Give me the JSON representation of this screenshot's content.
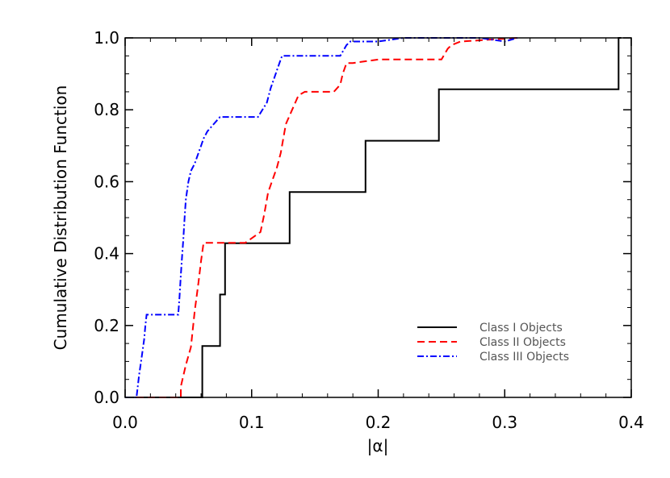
{
  "chart_data": {
    "type": "line",
    "xlabel": "|α|",
    "ylabel": "Cumulative Distribution Function",
    "xlim": [
      0.0,
      0.4
    ],
    "ylim": [
      0.0,
      1.0
    ],
    "xticks": [
      "0.0",
      "0.1",
      "0.2",
      "0.3",
      "0.4"
    ],
    "yticks": [
      "0.0",
      "0.2",
      "0.4",
      "0.6",
      "0.8",
      "1.0"
    ],
    "legend_position": "lower-right",
    "series": [
      {
        "name": "Class I Objects",
        "color": "#000000",
        "dash": "solid",
        "x": [
          0.0,
          0.061,
          0.061,
          0.075,
          0.075,
          0.077,
          0.077,
          0.079,
          0.079,
          0.13,
          0.13,
          0.19,
          0.19,
          0.248,
          0.248,
          0.39,
          0.39,
          0.392
        ],
        "y": [
          0.0,
          0.0,
          0.143,
          0.143,
          0.286,
          0.286,
          0.286,
          0.286,
          0.429,
          0.429,
          0.571,
          0.571,
          0.714,
          0.714,
          0.857,
          0.857,
          1.0,
          1.0
        ]
      },
      {
        "name": "Class II Objects",
        "color": "#ff0000",
        "dash": "dashed",
        "x": [
          0.0,
          0.02,
          0.044,
          0.044,
          0.048,
          0.052,
          0.055,
          0.058,
          0.06,
          0.062,
          0.095,
          0.107,
          0.11,
          0.113,
          0.116,
          0.12,
          0.123,
          0.127,
          0.132,
          0.137,
          0.142,
          0.147,
          0.165,
          0.17,
          0.172,
          0.175,
          0.178,
          0.18,
          0.2,
          0.22,
          0.25,
          0.255,
          0.258,
          0.265,
          0.31
        ],
        "y": [
          0.0,
          0.0,
          0.0,
          0.03,
          0.09,
          0.14,
          0.24,
          0.32,
          0.38,
          0.43,
          0.43,
          0.46,
          0.51,
          0.57,
          0.6,
          0.64,
          0.68,
          0.76,
          0.8,
          0.84,
          0.85,
          0.85,
          0.85,
          0.87,
          0.9,
          0.93,
          0.93,
          0.93,
          0.94,
          0.94,
          0.94,
          0.97,
          0.98,
          0.99,
          1.0
        ]
      },
      {
        "name": "Class III Objects",
        "color": "#0000ff",
        "dash": "dash-dot",
        "x": [
          0.0,
          0.009,
          0.011,
          0.013,
          0.015,
          0.016,
          0.017,
          0.03,
          0.042,
          0.043,
          0.044,
          0.045,
          0.046,
          0.047,
          0.048,
          0.05,
          0.052,
          0.055,
          0.057,
          0.06,
          0.062,
          0.065,
          0.07,
          0.075,
          0.105,
          0.112,
          0.115,
          0.118,
          0.12,
          0.122,
          0.124,
          0.128,
          0.17,
          0.175,
          0.178,
          0.2,
          0.22,
          0.25,
          0.28,
          0.3,
          0.31
        ],
        "y": [
          0.0,
          0.0,
          0.06,
          0.11,
          0.16,
          0.2,
          0.23,
          0.23,
          0.23,
          0.28,
          0.34,
          0.39,
          0.44,
          0.5,
          0.55,
          0.6,
          0.63,
          0.65,
          0.67,
          0.7,
          0.72,
          0.74,
          0.76,
          0.78,
          0.78,
          0.82,
          0.86,
          0.89,
          0.91,
          0.93,
          0.95,
          0.95,
          0.95,
          0.98,
          0.99,
          0.99,
          1.0,
          1.0,
          1.0,
          0.99,
          1.0
        ]
      }
    ]
  }
}
